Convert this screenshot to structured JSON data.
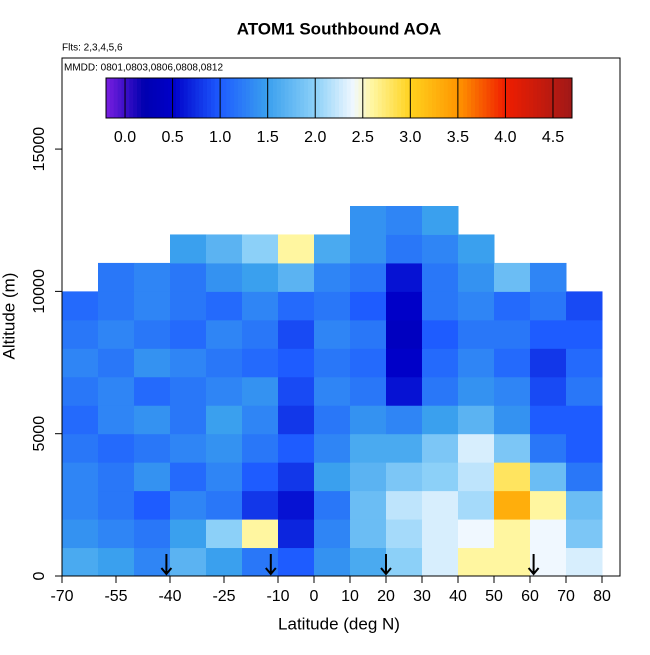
{
  "chart_data": {
    "type": "heatmap",
    "title": "ATOM1 Southbound AOA",
    "subtitle": "Flts: 2,3,4,5,6",
    "annotation": "MMDD: 0801,0803,0806,0808,0812",
    "xlabel": "Latitude (deg N)",
    "ylabel": "Altitude (m)",
    "xlim": [
      -70,
      85
    ],
    "ylim": [
      0,
      18200
    ],
    "xticks": [
      -70,
      -55,
      -40,
      -25,
      -10,
      0,
      10,
      20,
      30,
      40,
      50,
      60,
      70,
      80
    ],
    "yticks": [
      0,
      5000,
      10000,
      15000
    ],
    "x_bins": [
      -70,
      -60,
      -50,
      -40,
      -30,
      -20,
      -10,
      0,
      10,
      20,
      30,
      40,
      50,
      60,
      70,
      80
    ],
    "y_bins": [
      0,
      1000,
      2000,
      3000,
      4000,
      5000,
      6000,
      7000,
      8000,
      9000,
      10000,
      11000,
      12000,
      13000
    ],
    "z": [
      [
        1.6,
        1.5,
        1.3,
        1.7,
        1.5,
        1.2,
        1.0,
        1.4,
        1.6,
        2.0,
        2.3,
        2.6,
        2.6,
        2.4,
        2.3
      ],
      [
        1.4,
        1.3,
        1.2,
        1.5,
        2.0,
        2.6,
        0.7,
        1.3,
        1.8,
        2.1,
        2.3,
        2.4,
        2.6,
        2.4,
        1.9
      ],
      [
        1.3,
        1.2,
        1.0,
        1.3,
        1.2,
        0.8,
        0.6,
        1.2,
        1.8,
        2.2,
        2.3,
        2.1,
        3.3,
        2.6,
        1.8
      ],
      [
        1.3,
        1.2,
        1.4,
        1.1,
        1.3,
        1.0,
        0.8,
        1.5,
        1.7,
        1.9,
        2.0,
        2.2,
        2.8,
        1.8,
        1.2
      ],
      [
        1.2,
        1.1,
        1.2,
        1.3,
        1.4,
        1.2,
        1.0,
        1.3,
        1.6,
        1.6,
        1.9,
        2.3,
        1.9,
        1.2,
        1.0
      ],
      [
        1.1,
        1.3,
        1.4,
        1.2,
        1.5,
        1.3,
        0.8,
        1.2,
        1.4,
        1.3,
        1.5,
        1.7,
        1.4,
        1.0,
        1.0
      ],
      [
        1.2,
        1.3,
        1.1,
        1.2,
        1.3,
        1.4,
        0.9,
        1.3,
        1.2,
        0.6,
        1.2,
        1.4,
        1.3,
        0.9,
        1.2
      ],
      [
        1.3,
        1.2,
        1.4,
        1.3,
        1.2,
        1.1,
        1.0,
        1.2,
        1.1,
        0.5,
        1.1,
        1.3,
        1.1,
        0.8,
        1.1
      ],
      [
        1.2,
        1.3,
        1.2,
        1.1,
        1.3,
        1.2,
        0.9,
        1.3,
        1.2,
        0.4,
        1.0,
        1.2,
        1.2,
        1.0,
        1.0
      ],
      [
        1.1,
        1.2,
        1.3,
        1.2,
        1.1,
        1.3,
        1.1,
        1.2,
        1.0,
        0.5,
        1.2,
        1.3,
        1.1,
        1.2,
        0.9
      ],
      [
        null,
        1.2,
        1.3,
        1.2,
        1.4,
        1.5,
        1.7,
        1.3,
        1.2,
        0.6,
        1.2,
        1.4,
        1.8,
        1.3,
        null
      ],
      [
        null,
        null,
        null,
        1.5,
        1.7,
        2.0,
        2.6,
        1.6,
        1.4,
        1.2,
        1.3,
        1.5,
        null,
        null,
        null
      ],
      [
        null,
        null,
        null,
        null,
        null,
        null,
        null,
        null,
        1.4,
        1.3,
        1.5,
        null,
        null,
        null,
        null
      ]
    ],
    "colorbar_lim": [
      -0.2,
      4.7
    ],
    "colorbar_ticks": [
      {
        "value": 0,
        "label": "0.0"
      },
      0.5,
      {
        "value": 1,
        "label": "1.0"
      },
      1.5,
      {
        "value": 2,
        "label": "2.0"
      },
      2.5,
      {
        "value": 3,
        "label": "3.0"
      },
      3.5,
      {
        "value": 4,
        "label": "4.0"
      },
      4.5
    ],
    "colorscale": [
      [
        -0.2,
        "#7a1fe0"
      ],
      [
        0.2,
        "#0000b0"
      ],
      [
        0.5,
        "#0000c8"
      ],
      [
        1.0,
        "#1e5cff"
      ],
      [
        1.5,
        "#3aa0ee"
      ],
      [
        2.0,
        "#8cd0f8"
      ],
      [
        2.4,
        "#f0f8ff"
      ],
      [
        2.6,
        "#fff6a0"
      ],
      [
        3.0,
        "#ffd21e"
      ],
      [
        3.5,
        "#ff9600"
      ],
      [
        4.0,
        "#f01e00"
      ],
      [
        4.7,
        "#a01818"
      ]
    ],
    "flight_markers": [
      -41,
      -12,
      20,
      61
    ]
  }
}
